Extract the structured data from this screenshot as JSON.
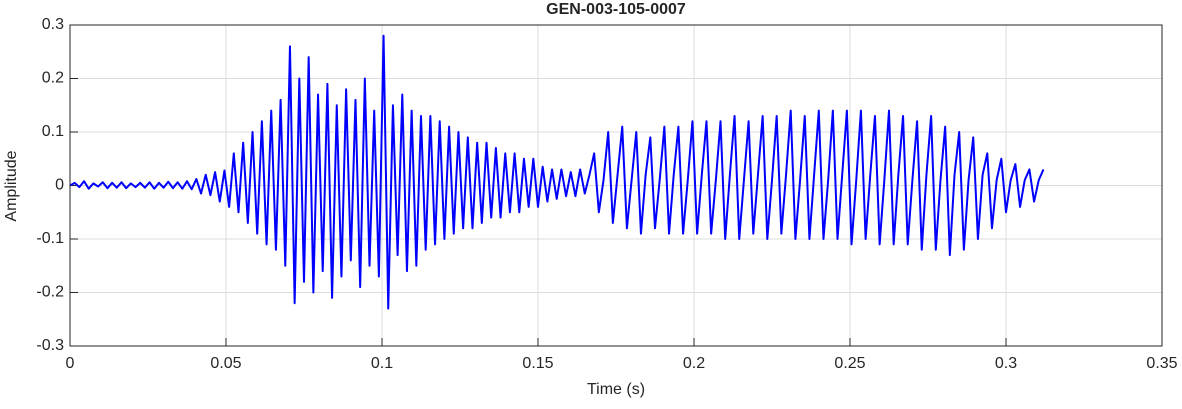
{
  "chart_data": {
    "type": "line",
    "title": "GEN-003-105-0007",
    "xlabel": "Time (s)",
    "ylabel": "Amplitude",
    "color": "#0000ff",
    "grid": true,
    "xlim": [
      0,
      0.35
    ],
    "xticks": [
      0,
      0.05,
      0.1,
      0.15,
      0.2,
      0.25,
      0.3,
      0.35
    ],
    "ylim": [
      -0.3,
      0.3
    ],
    "yticks": [
      -0.3,
      -0.2,
      -0.1,
      0,
      0.1,
      0.2,
      0.3
    ],
    "x": [
      0,
      0.0015,
      0.003,
      0.0045,
      0.006,
      0.0075,
      0.009,
      0.0105,
      0.012,
      0.0135,
      0.015,
      0.0165,
      0.018,
      0.0195,
      0.021,
      0.0225,
      0.024,
      0.0255,
      0.027,
      0.0285,
      0.03,
      0.0315,
      0.033,
      0.0345,
      0.036,
      0.0375,
      0.039,
      0.0405,
      0.042,
      0.0435,
      0.045,
      0.0465,
      0.048,
      0.0495,
      0.051,
      0.0525,
      0.054,
      0.0555,
      0.057,
      0.0585,
      0.06,
      0.0615,
      0.063,
      0.0645,
      0.066,
      0.0675,
      0.069,
      0.0705,
      0.072,
      0.0735,
      0.075,
      0.0765,
      0.078,
      0.0795,
      0.081,
      0.0825,
      0.084,
      0.0855,
      0.087,
      0.0885,
      0.09,
      0.0915,
      0.093,
      0.0945,
      0.096,
      0.0975,
      0.099,
      0.1005,
      0.102,
      0.1035,
      0.105,
      0.1065,
      0.108,
      0.1095,
      0.111,
      0.1125,
      0.114,
      0.1155,
      0.117,
      0.1185,
      0.12,
      0.1215,
      0.123,
      0.1245,
      0.126,
      0.1275,
      0.129,
      0.1305,
      0.132,
      0.1335,
      0.135,
      0.1365,
      0.138,
      0.1395,
      0.141,
      0.1425,
      0.144,
      0.1455,
      0.147,
      0.1485,
      0.15,
      0.1515,
      0.153,
      0.1545,
      0.156,
      0.1575,
      0.159,
      0.1605,
      0.162,
      0.1635,
      0.165,
      0.1665,
      0.168,
      0.1695,
      0.171,
      0.1725,
      0.174,
      0.1755,
      0.177,
      0.1785,
      0.18,
      0.1815,
      0.183,
      0.1845,
      0.186,
      0.1875,
      0.189,
      0.1905,
      0.192,
      0.1935,
      0.195,
      0.1965,
      0.198,
      0.1995,
      0.201,
      0.2025,
      0.204,
      0.2055,
      0.207,
      0.2085,
      0.21,
      0.2115,
      0.213,
      0.2145,
      0.216,
      0.2175,
      0.219,
      0.2205,
      0.222,
      0.2235,
      0.225,
      0.2265,
      0.228,
      0.2295,
      0.231,
      0.2325,
      0.234,
      0.2355,
      0.237,
      0.2385,
      0.24,
      0.2415,
      0.243,
      0.2445,
      0.246,
      0.2475,
      0.249,
      0.2505,
      0.252,
      0.2535,
      0.255,
      0.2565,
      0.258,
      0.2595,
      0.261,
      0.2625,
      0.264,
      0.2655,
      0.267,
      0.2685,
      0.27,
      0.2715,
      0.273,
      0.2745,
      0.276,
      0.2775,
      0.279,
      0.2805,
      0.282,
      0.2835,
      0.285,
      0.2865,
      0.288,
      0.2895,
      0.291,
      0.2925,
      0.294,
      0.2955,
      0.297,
      0.2985,
      0.3,
      0.3015,
      0.303,
      0.3045,
      0.306,
      0.3075,
      0.309,
      0.3105,
      0.312
    ],
    "values": [
      0,
      0.005,
      -0.003,
      0.008,
      -0.006,
      0.004,
      -0.002,
      0.006,
      -0.005,
      0.005,
      -0.004,
      0.006,
      -0.005,
      0.004,
      -0.003,
      0.005,
      -0.004,
      0.006,
      -0.006,
      0.005,
      -0.004,
      0.007,
      -0.005,
      0.006,
      -0.006,
      0.008,
      -0.007,
      0.012,
      -0.015,
      0.02,
      -0.018,
      0.025,
      -0.03,
      0.028,
      -0.04,
      0.06,
      -0.05,
      0.08,
      -0.07,
      0.1,
      -0.09,
      0.12,
      -0.11,
      0.14,
      -0.12,
      0.16,
      -0.15,
      0.26,
      -0.22,
      0.2,
      -0.18,
      0.24,
      -0.2,
      0.17,
      -0.16,
      0.19,
      -0.21,
      0.15,
      -0.17,
      0.18,
      -0.14,
      0.16,
      -0.19,
      0.2,
      -0.15,
      0.14,
      -0.17,
      0.28,
      -0.23,
      0.15,
      -0.13,
      0.17,
      -0.16,
      0.14,
      -0.15,
      0.13,
      -0.12,
      0.13,
      -0.11,
      0.12,
      -0.1,
      0.11,
      -0.09,
      0.1,
      -0.08,
      0.09,
      -0.08,
      0.08,
      -0.07,
      0.08,
      -0.06,
      0.07,
      -0.06,
      0.06,
      -0.05,
      0.06,
      -0.05,
      0.05,
      -0.04,
      0.05,
      -0.04,
      0.035,
      -0.03,
      0.03,
      -0.025,
      0.03,
      -0.02,
      0.025,
      -0.02,
      0.03,
      -0.015,
      0.02,
      0.06,
      -0.05,
      0.01,
      0.1,
      -0.07,
      0.02,
      0.11,
      -0.08,
      0.01,
      0.1,
      -0.09,
      0.02,
      0.09,
      -0.08,
      0.01,
      0.11,
      -0.09,
      0.02,
      0.11,
      -0.09,
      0.01,
      0.12,
      -0.09,
      0.02,
      0.12,
      -0.09,
      0.01,
      0.12,
      -0.1,
      0.02,
      0.13,
      -0.1,
      0.01,
      0.12,
      -0.09,
      0.02,
      0.13,
      -0.1,
      0.01,
      0.13,
      -0.09,
      0.02,
      0.14,
      -0.1,
      0.01,
      0.13,
      -0.1,
      0.02,
      0.14,
      -0.1,
      0.01,
      0.14,
      -0.1,
      0.02,
      0.14,
      -0.11,
      0.01,
      0.14,
      -0.1,
      0.02,
      0.13,
      -0.11,
      0.01,
      0.14,
      -0.11,
      0.02,
      0.13,
      -0.11,
      0.01,
      0.12,
      -0.12,
      0.02,
      0.13,
      -0.12,
      0.01,
      0.11,
      -0.13,
      0.02,
      0.1,
      -0.12,
      0.01,
      0.09,
      -0.1,
      0.02,
      0.06,
      -0.08,
      0.01,
      0.05,
      -0.05,
      0.01,
      0.04,
      -0.04,
      0.01,
      0.03,
      -0.03,
      0.01,
      0.03
    ]
  }
}
